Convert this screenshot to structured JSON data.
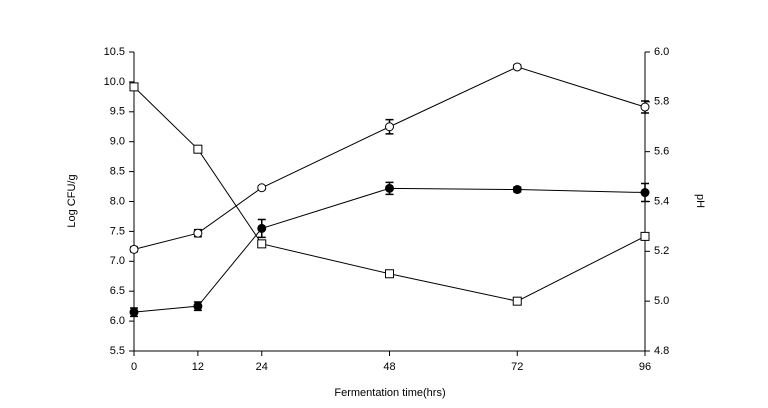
{
  "chart_data": {
    "type": "line",
    "x_label": "Fermentation time(hrs)",
    "y_label": "Log CFU/g",
    "y2_label": "pH",
    "x": [
      0,
      12,
      24,
      48,
      72,
      96
    ],
    "xlim": [
      0,
      96
    ],
    "xticks": [
      0,
      12,
      24,
      48,
      72,
      96
    ],
    "ylim": [
      5.5,
      10.5
    ],
    "yticks": [
      5.5,
      {
        "value": 6,
        "label": "6.0"
      },
      6.5,
      {
        "value": 7,
        "label": "7.0"
      },
      7.5,
      {
        "value": 8,
        "label": "8.0"
      },
      8.5,
      {
        "value": 9,
        "label": "9.0"
      },
      9.5,
      {
        "value": 10,
        "label": "10.0"
      },
      10.5
    ],
    "y2lim": [
      4.8,
      6.0
    ],
    "y2ticks": [
      4.8,
      {
        "value": 5,
        "label": "5.0"
      },
      5.2,
      5.4,
      5.6,
      5.8,
      {
        "value": 6,
        "label": "6.0"
      }
    ],
    "series": [
      {
        "color": "#000000",
        "marker": "circle-open",
        "values": [
          7.2,
          7.47,
          8.23,
          9.25,
          10.25,
          9.58
        ],
        "errors": [
          0.04,
          0.06,
          0.03,
          0.12,
          0.03,
          0.1
        ]
      },
      {
        "color": "#000000",
        "marker": "circle-filled",
        "values": [
          6.15,
          6.25,
          7.55,
          8.22,
          8.2,
          8.15
        ],
        "errors": [
          0.07,
          0.07,
          0.15,
          0.1,
          0.04,
          0.15
        ]
      },
      {
        "color": "#000000",
        "marker": "square-open",
        "axis": "y2",
        "values": [
          5.86,
          5.61,
          5.23,
          5.11,
          5.0,
          5.26
        ]
      }
    ]
  }
}
